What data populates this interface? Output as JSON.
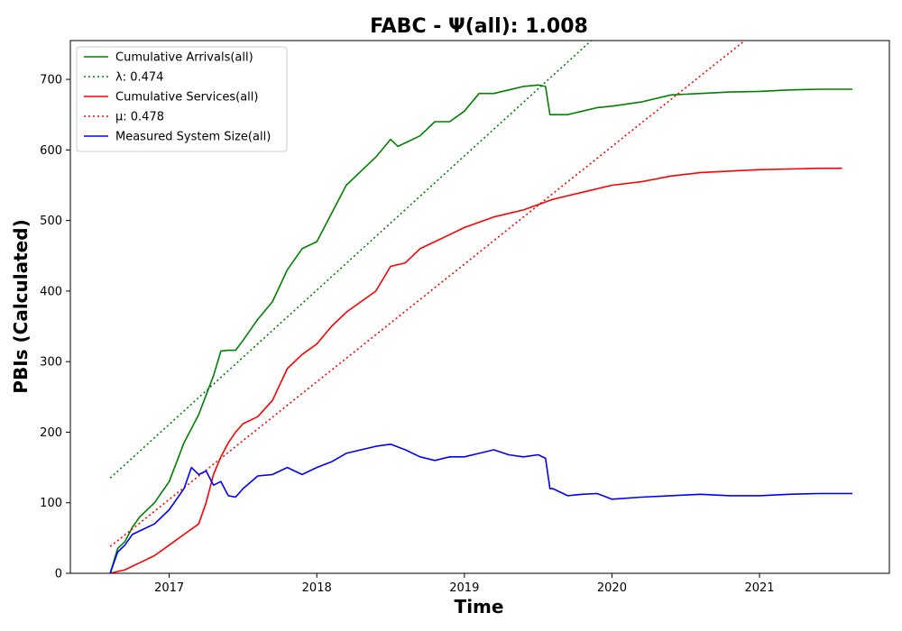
{
  "chart_data": {
    "type": "line",
    "title": "FABC -  Ψ(all): 1.008",
    "xlabel": "Time",
    "ylabel": "PBIs (Calculated)",
    "xlim": [
      2016.33,
      2021.88
    ],
    "ylim": [
      0,
      755
    ],
    "x_ticks": [
      2017,
      2018,
      2019,
      2020,
      2021
    ],
    "x_tick_labels": [
      "2017",
      "2018",
      "2019",
      "2020",
      "2021"
    ],
    "y_ticks": [
      0,
      100,
      200,
      300,
      400,
      500,
      600,
      700
    ],
    "y_tick_labels": [
      "0",
      "100",
      "200",
      "300",
      "400",
      "500",
      "600",
      "700"
    ],
    "grid": false,
    "legend_position": "top-left",
    "series": [
      {
        "name": "Cumulative Arrivals(all)",
        "label": "Cumulative Arrivals(all)",
        "color": "#008000",
        "style": "solid",
        "x": [
          2016.6,
          2016.65,
          2016.7,
          2016.75,
          2016.8,
          2016.9,
          2017.0,
          2017.1,
          2017.2,
          2017.3,
          2017.35,
          2017.4,
          2017.45,
          2017.5,
          2017.6,
          2017.7,
          2017.8,
          2017.9,
          2018.0,
          2018.1,
          2018.2,
          2018.3,
          2018.4,
          2018.5,
          2018.55,
          2018.7,
          2018.8,
          2018.9,
          2019.0,
          2019.1,
          2019.2,
          2019.3,
          2019.4,
          2019.5,
          2019.55,
          2019.58,
          2019.6,
          2019.7,
          2019.8,
          2019.9,
          2020.0,
          2020.2,
          2020.4,
          2020.6,
          2020.8,
          2021.0,
          2021.2,
          2021.4,
          2021.63
        ],
        "values": [
          0,
          35,
          45,
          65,
          80,
          100,
          130,
          185,
          225,
          280,
          315,
          316,
          316,
          330,
          360,
          385,
          430,
          460,
          470,
          510,
          550,
          570,
          590,
          615,
          605,
          620,
          640,
          640,
          655,
          680,
          680,
          685,
          690,
          692,
          690,
          650,
          650,
          650,
          655,
          660,
          662,
          668,
          678,
          680,
          682,
          683,
          685,
          686,
          686
        ]
      },
      {
        "name": "λ: 0.474",
        "label": "λ: 0.474",
        "color": "#008000",
        "style": "dotted",
        "x": [
          2016.6,
          2019.86
        ],
        "values": [
          135,
          755
        ]
      },
      {
        "name": "Cumulative Services(all)",
        "label": "Cumulative Services(all)",
        "color": "#ff0000",
        "style": "solid",
        "x": [
          2016.6,
          2016.7,
          2016.8,
          2016.9,
          2017.0,
          2017.1,
          2017.2,
          2017.25,
          2017.3,
          2017.35,
          2017.4,
          2017.45,
          2017.5,
          2017.6,
          2017.7,
          2017.8,
          2017.9,
          2018.0,
          2018.1,
          2018.2,
          2018.3,
          2018.4,
          2018.5,
          2018.6,
          2018.7,
          2018.8,
          2018.9,
          2019.0,
          2019.2,
          2019.4,
          2019.6,
          2019.8,
          2020.0,
          2020.2,
          2020.4,
          2020.6,
          2020.8,
          2021.0,
          2021.2,
          2021.4,
          2021.56
        ],
        "values": [
          0,
          5,
          15,
          25,
          40,
          55,
          70,
          100,
          140,
          165,
          185,
          200,
          212,
          222,
          245,
          290,
          310,
          325,
          350,
          370,
          385,
          400,
          435,
          440,
          460,
          470,
          480,
          490,
          505,
          515,
          530,
          540,
          550,
          555,
          563,
          568,
          570,
          572,
          573,
          574,
          574
        ]
      },
      {
        "name": "μ: 0.478",
        "label": "μ: 0.478",
        "color": "#ff0000",
        "style": "dotted",
        "x": [
          2016.6,
          2020.9
        ],
        "values": [
          38,
          755
        ]
      },
      {
        "name": "Measured System Size(all)",
        "label": "Measured System Size(all)",
        "color": "#0000ff",
        "style": "solid",
        "x": [
          2016.6,
          2016.65,
          2016.7,
          2016.75,
          2016.8,
          2016.9,
          2017.0,
          2017.1,
          2017.15,
          2017.2,
          2017.25,
          2017.3,
          2017.35,
          2017.4,
          2017.45,
          2017.5,
          2017.6,
          2017.7,
          2017.8,
          2017.9,
          2018.0,
          2018.1,
          2018.2,
          2018.3,
          2018.4,
          2018.5,
          2018.6,
          2018.7,
          2018.8,
          2018.9,
          2019.0,
          2019.1,
          2019.2,
          2019.3,
          2019.4,
          2019.5,
          2019.55,
          2019.58,
          2019.6,
          2019.7,
          2019.8,
          2019.9,
          2020.0,
          2020.2,
          2020.4,
          2020.6,
          2020.8,
          2021.0,
          2021.2,
          2021.4,
          2021.63
        ],
        "values": [
          0,
          30,
          40,
          55,
          60,
          70,
          90,
          120,
          150,
          140,
          145,
          125,
          130,
          110,
          108,
          120,
          138,
          140,
          150,
          140,
          150,
          158,
          170,
          175,
          180,
          183,
          175,
          165,
          160,
          165,
          165,
          170,
          175,
          168,
          165,
          168,
          163,
          120,
          120,
          110,
          112,
          113,
          105,
          108,
          110,
          112,
          110,
          110,
          112,
          113,
          113
        ]
      }
    ]
  }
}
